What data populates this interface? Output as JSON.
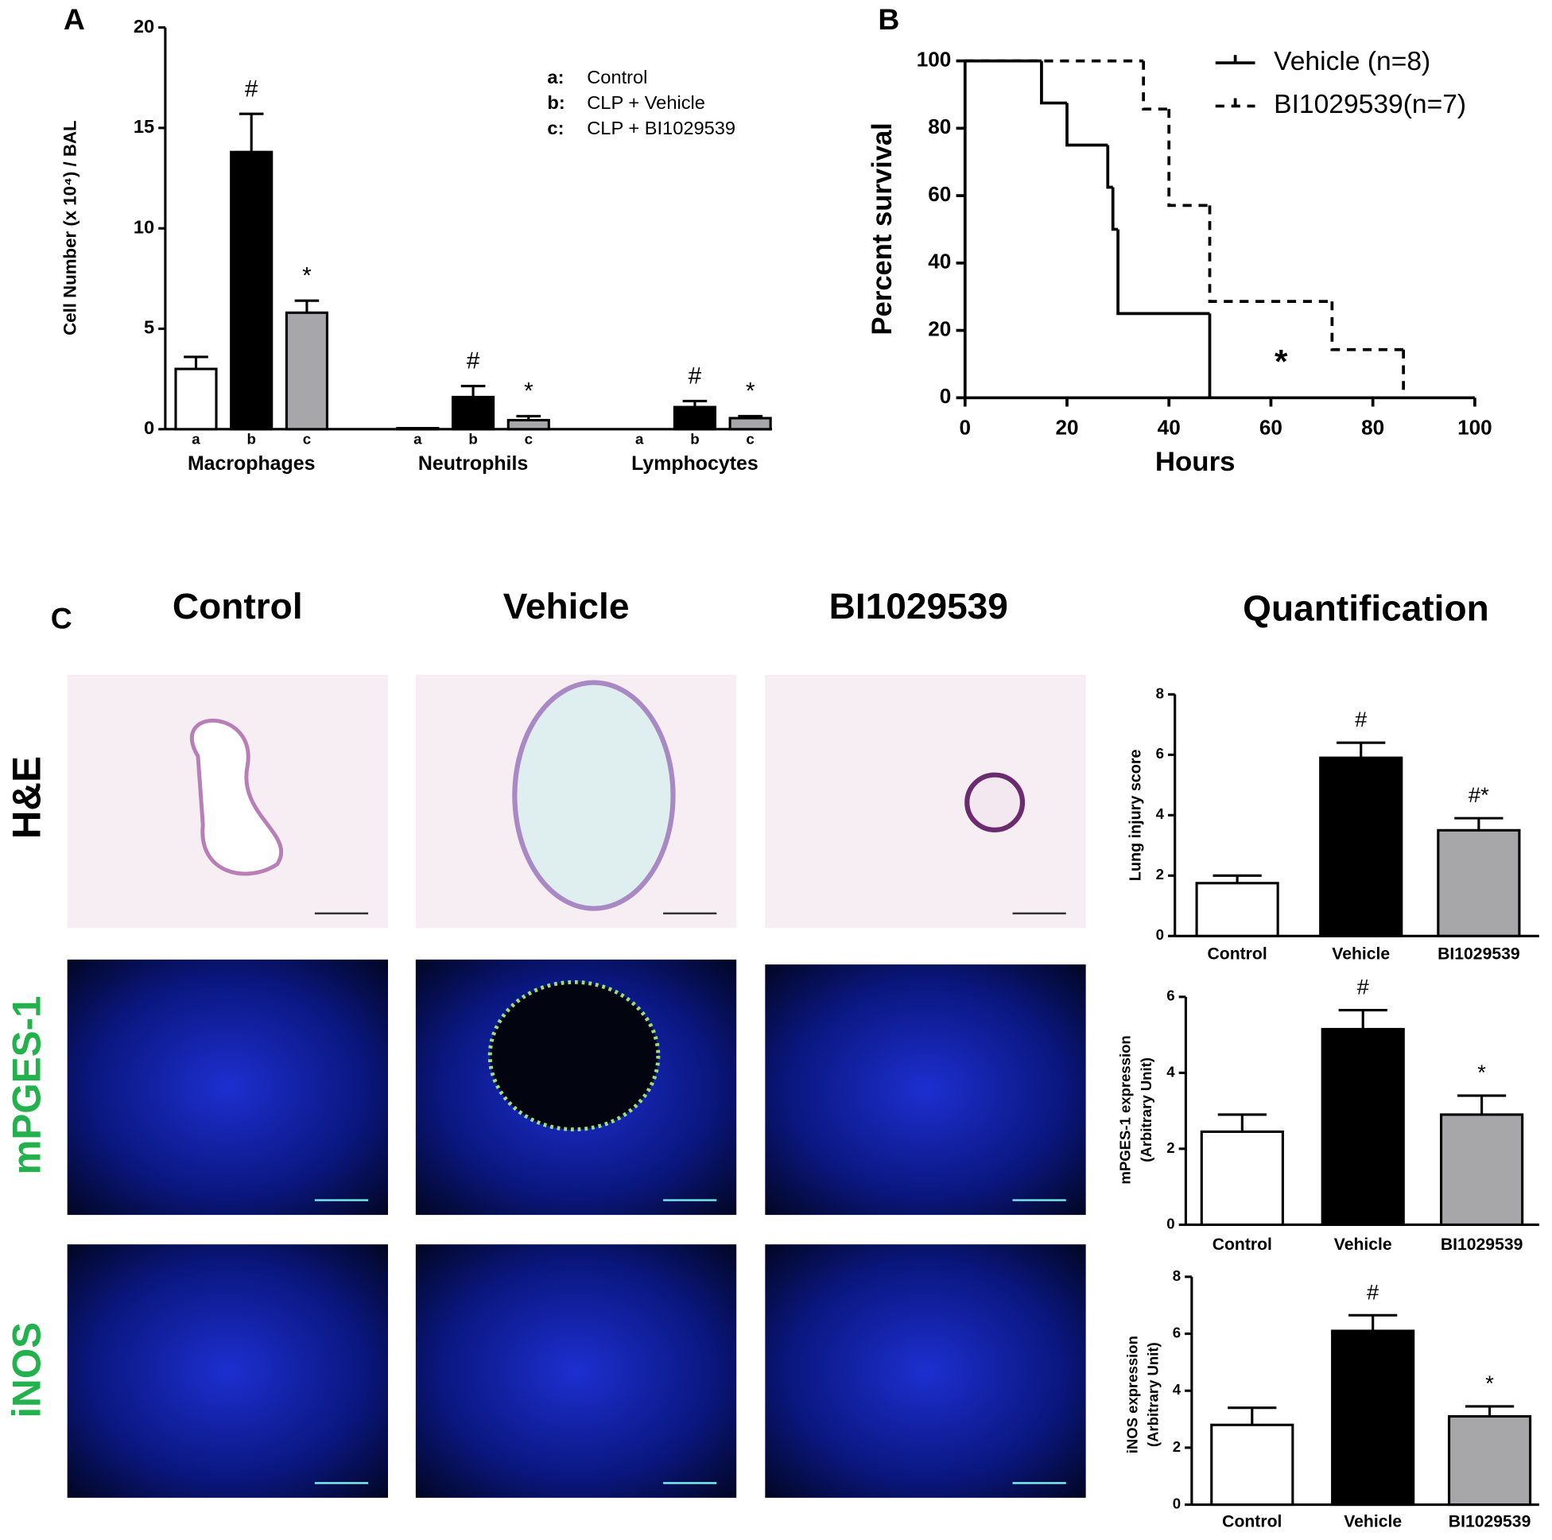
{
  "panel_labels": [
    "A",
    "B",
    "C"
  ],
  "chart_data": [
    {
      "type": "bar",
      "ylabel": "Cell Number (x 10⁴) / BAL",
      "categories": [
        "Macrophages",
        "Neutrophils",
        "Lymphocytes"
      ],
      "ylim": [
        0,
        20
      ],
      "yticks": [
        0,
        5,
        10,
        15,
        20
      ],
      "legend_position": "upper right",
      "series": [
        {
          "key": "a:",
          "label": "a",
          "name": "Control",
          "color": "#ffffff",
          "values": [
            3.0,
            0.05,
            0
          ],
          "errors": [
            0.6,
            0,
            0
          ]
        },
        {
          "key": "b:",
          "label": "b",
          "name": "CLP + Vehicle",
          "color": "#000000",
          "values": [
            13.8,
            1.6,
            1.1
          ],
          "errors": [
            1.9,
            0.55,
            0.3
          ],
          "markers": [
            "#",
            "#",
            "#"
          ]
        },
        {
          "key": "c:",
          "label": "c",
          "name": "CLP + BI1029539",
          "color": "#a7a7a9",
          "values": [
            5.8,
            0.45,
            0.55
          ],
          "errors": [
            0.6,
            0.2,
            0.1
          ],
          "markers": [
            "*",
            "*",
            "*"
          ]
        }
      ]
    },
    {
      "type": "step",
      "xlabel": "Hours",
      "ylabel": "Percent survival",
      "xlim": [
        0,
        100
      ],
      "xticks": [
        0,
        20,
        40,
        60,
        80,
        100
      ],
      "ylim": [
        0,
        100
      ],
      "yticks": [
        0,
        20,
        40,
        60,
        80,
        100
      ],
      "legend_position": "upper right",
      "series": [
        {
          "name": "Vehicle (n=8)",
          "color": "#000000",
          "dashed": false,
          "x": [
            0,
            15,
            20,
            28,
            29,
            30,
            48
          ],
          "values": [
            100,
            87.5,
            75,
            62.5,
            50,
            25,
            0
          ]
        },
        {
          "name": "BI1029539(n=7)",
          "color": "#000000",
          "dashed": true,
          "x": [
            0,
            35,
            40,
            48,
            72,
            86
          ],
          "values": [
            100,
            85.7,
            57.1,
            28.6,
            14.3,
            0
          ]
        }
      ],
      "annotations": [
        {
          "text": "*",
          "x": 62,
          "y": 10
        }
      ]
    },
    {
      "type": "bar",
      "ylabel": "Lung injury score",
      "categories": [
        "Control",
        "Vehicle",
        "BI1029539"
      ],
      "colors": [
        "#ffffff",
        "#000000",
        "#a7a7a9"
      ],
      "values": [
        1.75,
        5.9,
        3.5
      ],
      "errors": [
        0.25,
        0.5,
        0.4
      ],
      "markers": [
        null,
        "#",
        "#*"
      ],
      "ylim": [
        0,
        8
      ],
      "yticks": [
        0,
        2,
        4,
        6,
        8
      ]
    },
    {
      "type": "bar",
      "ylabel": [
        "mPGES-1 expression",
        "(Arbitrary Unit)"
      ],
      "categories": [
        "Control",
        "Vehicle",
        "BI1029539"
      ],
      "colors": [
        "#ffffff",
        "#000000",
        "#a7a7a9"
      ],
      "values": [
        2.45,
        5.15,
        2.9
      ],
      "errors": [
        0.45,
        0.5,
        0.5
      ],
      "markers": [
        null,
        "#",
        "*"
      ],
      "ylim": [
        0,
        6
      ],
      "yticks": [
        0,
        2,
        4,
        6
      ]
    },
    {
      "type": "bar",
      "ylabel": [
        "iNOS expression",
        "(Arbitrary Unit)"
      ],
      "categories": [
        "Control",
        "Vehicle",
        "BI1029539"
      ],
      "colors": [
        "#ffffff",
        "#000000",
        "#a7a7a9"
      ],
      "values": [
        2.8,
        6.1,
        3.1
      ],
      "errors": [
        0.6,
        0.55,
        0.35
      ],
      "markers": [
        null,
        "#",
        "*"
      ],
      "ylim": [
        0,
        8
      ],
      "yticks": [
        0,
        2,
        4,
        6,
        8
      ]
    }
  ],
  "panel_c": {
    "columns": [
      "Control",
      "Vehicle",
      "BI1029539"
    ],
    "rows": [
      "H&E",
      "mPGES-1",
      "iNOS"
    ],
    "quantification": "Quantification"
  }
}
